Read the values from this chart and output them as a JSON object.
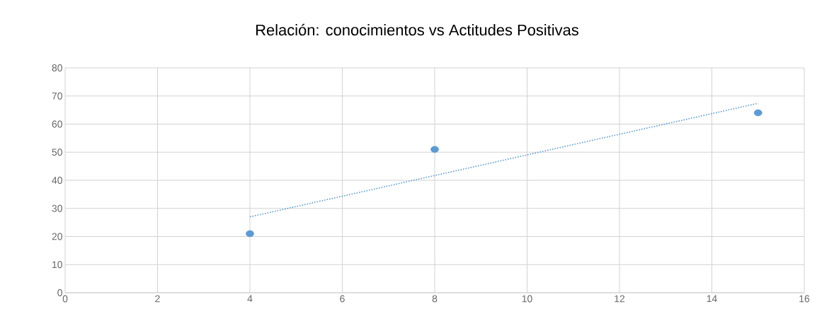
{
  "chart_data": {
    "type": "scatter",
    "title": "Relación: conocimientos vs Actitudes Positivas",
    "xlim": [
      0,
      16
    ],
    "ylim": [
      0,
      80
    ],
    "xticks": [
      0,
      2,
      4,
      6,
      8,
      10,
      12,
      14,
      16
    ],
    "yticks": [
      0,
      10,
      20,
      30,
      40,
      50,
      60,
      70,
      80
    ],
    "grid": true,
    "series": [
      {
        "type": "scatter",
        "color": "#5b9bd5",
        "marker": "circle",
        "x": [
          4,
          8,
          15
        ],
        "values": [
          21,
          51,
          64
        ]
      },
      {
        "type": "line",
        "color": "#5b9bd5",
        "marker": "none",
        "line_style": "dotted",
        "x": [
          4,
          15
        ],
        "values": [
          27,
          67.4
        ]
      }
    ]
  }
}
